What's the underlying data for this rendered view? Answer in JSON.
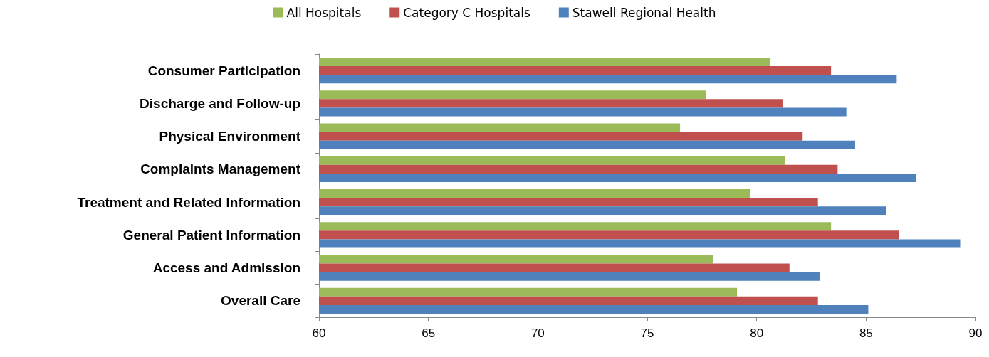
{
  "chart_data": {
    "type": "bar",
    "orientation": "horizontal",
    "categories": [
      "Consumer Participation",
      "Discharge and Follow-up",
      "Physical Environment",
      "Complaints Management",
      "Treatment and Related Information",
      "General Patient Information",
      "Access and Admission",
      "Overall Care"
    ],
    "series": [
      {
        "name": "All Hospitals",
        "color": "#9bbb59",
        "values": [
          80.6,
          77.7,
          76.5,
          81.3,
          79.7,
          83.4,
          78.0,
          79.1
        ]
      },
      {
        "name": "Category C Hospitals",
        "color": "#c0504d",
        "values": [
          83.4,
          81.2,
          82.1,
          83.7,
          82.8,
          86.5,
          81.5,
          82.8
        ]
      },
      {
        "name": "Stawell Regional Health",
        "color": "#4f81bd",
        "values": [
          86.4,
          84.1,
          84.5,
          87.3,
          85.9,
          89.3,
          82.9,
          85.1
        ]
      }
    ],
    "xlim": [
      60,
      90
    ],
    "xticks": [
      60,
      65,
      70,
      75,
      80,
      85,
      90
    ],
    "grid": false,
    "legend": "top"
  }
}
